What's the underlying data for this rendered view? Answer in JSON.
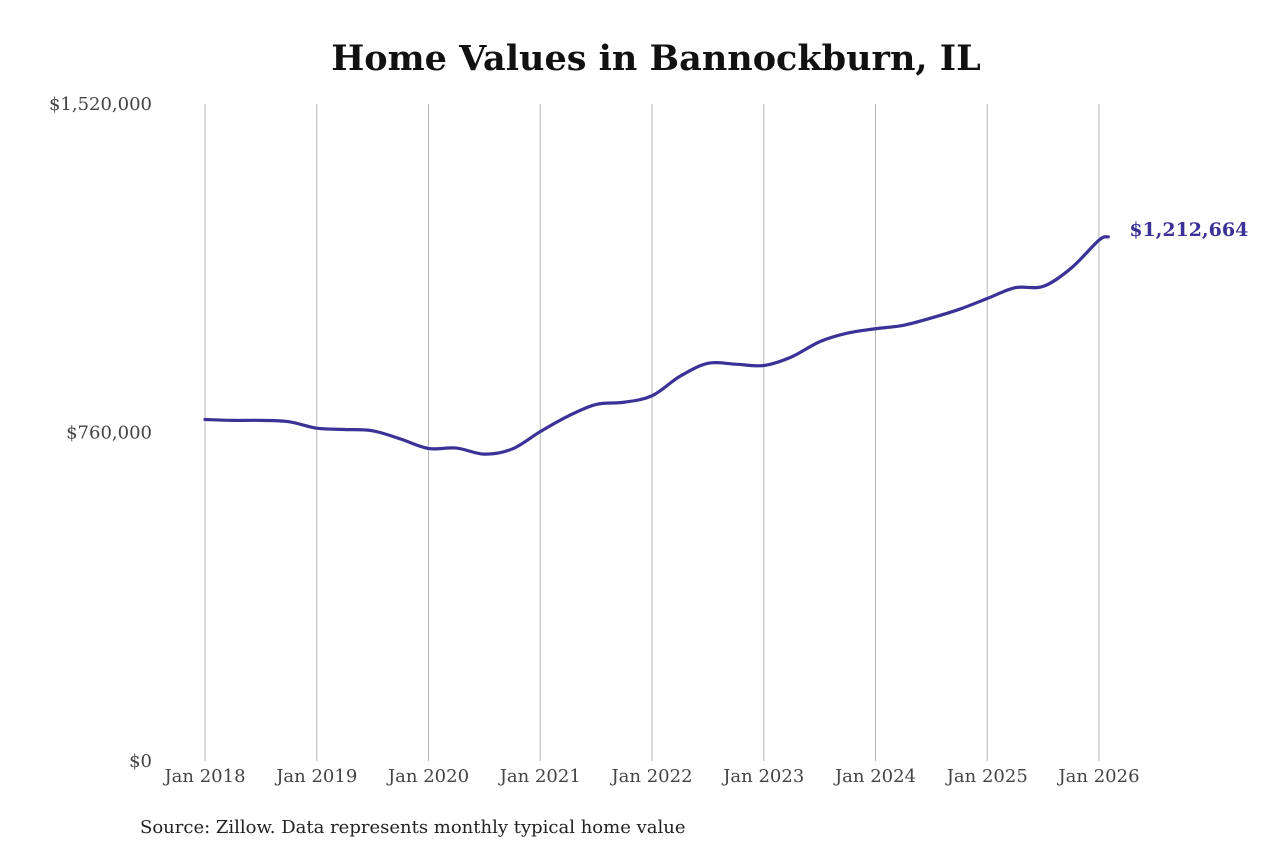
{
  "chart_data": {
    "type": "line",
    "title": "Home Values in Bannockburn, IL",
    "source": "Source: Zillow. Data represents monthly typical home value",
    "ylim": [
      0,
      1520000
    ],
    "yticks": [
      {
        "value": 0,
        "label": "$0"
      },
      {
        "value": 760000,
        "label": "$760,000"
      },
      {
        "value": 1520000,
        "label": "$1,520,000"
      }
    ],
    "xlim": [
      "2018-01",
      "2026-01"
    ],
    "xticks": [
      {
        "date": "2018-01",
        "label": "Jan 2018"
      },
      {
        "date": "2019-01",
        "label": "Jan 2019"
      },
      {
        "date": "2020-01",
        "label": "Jan 2020"
      },
      {
        "date": "2021-01",
        "label": "Jan 2021"
      },
      {
        "date": "2022-01",
        "label": "Jan 2022"
      },
      {
        "date": "2023-01",
        "label": "Jan 2023"
      },
      {
        "date": "2024-01",
        "label": "Jan 2024"
      },
      {
        "date": "2025-01",
        "label": "Jan 2025"
      },
      {
        "date": "2026-01",
        "label": "Jan 2026"
      }
    ],
    "grid": "vertical",
    "series": [
      {
        "color": "#3b3197",
        "end_label": "$1,212,664",
        "points": [
          {
            "date": "2018-01",
            "value": 790000
          },
          {
            "date": "2018-04",
            "value": 788000
          },
          {
            "date": "2018-07",
            "value": 788000
          },
          {
            "date": "2018-10",
            "value": 785000
          },
          {
            "date": "2019-01",
            "value": 770000
          },
          {
            "date": "2019-04",
            "value": 767000
          },
          {
            "date": "2019-07",
            "value": 764000
          },
          {
            "date": "2019-10",
            "value": 745000
          },
          {
            "date": "2020-01",
            "value": 723000
          },
          {
            "date": "2020-04",
            "value": 724000
          },
          {
            "date": "2020-07",
            "value": 710000
          },
          {
            "date": "2020-10",
            "value": 722000
          },
          {
            "date": "2021-01",
            "value": 762000
          },
          {
            "date": "2021-04",
            "value": 798000
          },
          {
            "date": "2021-07",
            "value": 825000
          },
          {
            "date": "2021-10",
            "value": 830000
          },
          {
            "date": "2022-01",
            "value": 845000
          },
          {
            "date": "2022-04",
            "value": 890000
          },
          {
            "date": "2022-07",
            "value": 920000
          },
          {
            "date": "2022-10",
            "value": 918000
          },
          {
            "date": "2023-01",
            "value": 915000
          },
          {
            "date": "2023-04",
            "value": 935000
          },
          {
            "date": "2023-07",
            "value": 970000
          },
          {
            "date": "2023-10",
            "value": 990000
          },
          {
            "date": "2024-01",
            "value": 1000000
          },
          {
            "date": "2024-04",
            "value": 1008000
          },
          {
            "date": "2024-07",
            "value": 1025000
          },
          {
            "date": "2024-10",
            "value": 1045000
          },
          {
            "date": "2025-01",
            "value": 1070000
          },
          {
            "date": "2025-04",
            "value": 1095000
          },
          {
            "date": "2025-07",
            "value": 1098000
          },
          {
            "date": "2025-10",
            "value": 1140000
          },
          {
            "date": "2026-01",
            "value": 1205000
          },
          {
            "date": "2026-02",
            "value": 1212664
          }
        ]
      }
    ]
  }
}
